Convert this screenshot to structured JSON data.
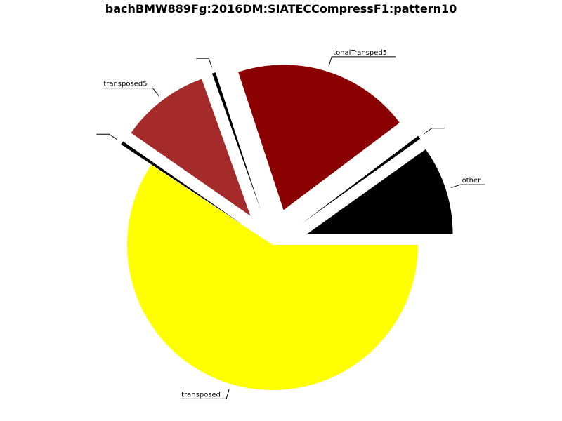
{
  "chart_data": {
    "type": "pie",
    "title": "bachBMW889Fg:2016DM:SIATECCompressF1:pattern10",
    "slices": [
      {
        "label": "other",
        "value": 10,
        "color": "#000000"
      },
      {
        "label": "",
        "value": 0.4,
        "color": "#000000"
      },
      {
        "label": "tonalTransped5",
        "value": 20,
        "color": "#8b0000"
      },
      {
        "label": "",
        "value": 0.4,
        "color": "#000000"
      },
      {
        "label": "transposed5",
        "value": 10,
        "color": "#a52a2a"
      },
      {
        "label": "",
        "value": 0.4,
        "color": "#000000"
      },
      {
        "label": "transposed",
        "value": 60,
        "color": "#ffff00"
      }
    ],
    "start_angle_deg": 0,
    "direction": "counterclockwise",
    "exploded": true,
    "legend": "none"
  }
}
